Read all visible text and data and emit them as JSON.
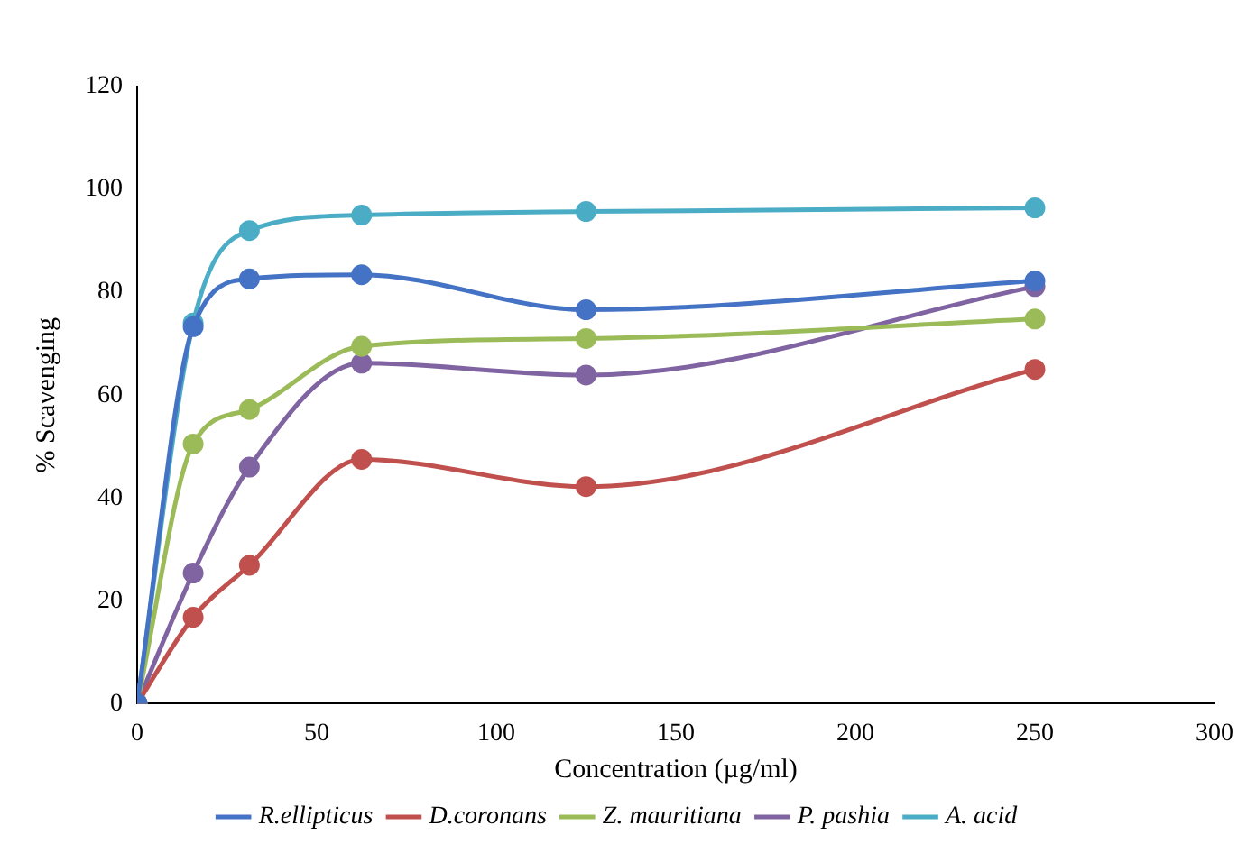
{
  "chart_data": {
    "type": "line",
    "xlabel": "Concentration (µg/ml)",
    "ylabel": "% Scavenging",
    "xlim": [
      0,
      300
    ],
    "xticks": [
      0,
      50,
      100,
      150,
      200,
      250,
      300
    ],
    "ylim": [
      0,
      120
    ],
    "yticks": [
      0,
      20,
      40,
      60,
      80,
      100,
      120
    ],
    "grid": false,
    "legend": "bottom",
    "marker": "circle",
    "line_style": "solid",
    "series": [
      {
        "name": "R.ellipticus",
        "color": "#4472c4",
        "x": [
          0,
          15.6,
          31.25,
          62.5,
          125,
          250
        ],
        "values": [
          0,
          73.3,
          82.6,
          83.4,
          76.6,
          82.2
        ]
      },
      {
        "name": "D.coronans",
        "color": "#c0504d",
        "x": [
          0,
          15.6,
          31.25,
          62.5,
          125,
          250
        ],
        "values": [
          0,
          16.8,
          26.9,
          47.5,
          42.2,
          65
        ]
      },
      {
        "name": "Z. mauritiana",
        "color": "#9bbb59",
        "x": [
          0,
          15.6,
          31.25,
          62.5,
          125,
          250
        ],
        "values": [
          0,
          50.5,
          57.2,
          69.5,
          71,
          74.8
        ]
      },
      {
        "name": "P. pashia",
        "color": "#8064a2",
        "x": [
          0,
          15.6,
          31.25,
          62.5,
          125,
          250
        ],
        "values": [
          0,
          25.4,
          46,
          66.2,
          63.9,
          81.1
        ]
      },
      {
        "name": "A. acid",
        "color": "#4bacc6",
        "x": [
          0,
          15.6,
          31.25,
          62.5,
          125,
          250
        ],
        "values": [
          0,
          74,
          92,
          95,
          95.7,
          96.4
        ]
      }
    ]
  }
}
